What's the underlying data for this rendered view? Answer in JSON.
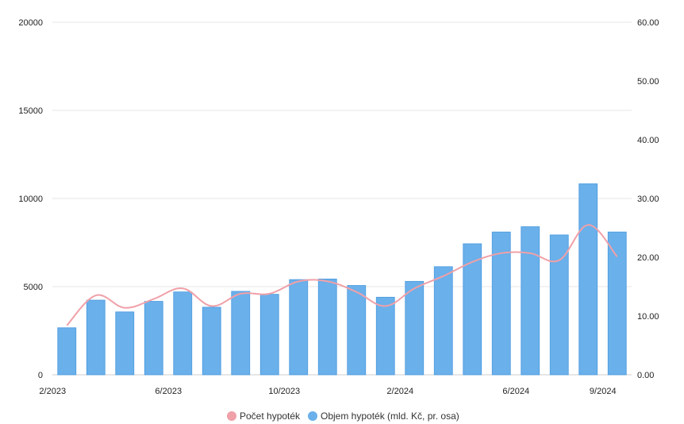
{
  "chart_data": {
    "type": "bar",
    "categories": [
      "2/2023",
      "3/2023",
      "4/2023",
      "5/2023",
      "6/2023",
      "7/2023",
      "8/2023",
      "9/2023",
      "10/2023",
      "11/2023",
      "12/2023",
      "1/2024",
      "2/2024",
      "3/2024",
      "4/2024",
      "5/2024",
      "6/2024",
      "7/2024",
      "8/2024",
      "9/2024"
    ],
    "x_tick_labels": [
      "2/2023",
      "6/2023",
      "10/2023",
      "2/2024",
      "6/2024",
      "9/2024"
    ],
    "y_left": {
      "ylim": [
        0,
        20000
      ],
      "ticks": [
        0,
        5000,
        10000,
        15000,
        20000
      ]
    },
    "y_right": {
      "ylim": [
        0,
        60
      ],
      "ticks": [
        "0.00",
        "10.00",
        "20.00",
        "30.00",
        "40.00",
        "50.00",
        "60.00"
      ]
    },
    "series": [
      {
        "name": "Objem hypoték (mld. Kč, pr. osa)",
        "type": "bar",
        "axis": "right",
        "color": "#6ab0ea",
        "values": [
          8.0,
          12.7,
          10.7,
          12.5,
          14.1,
          11.5,
          14.2,
          13.7,
          16.2,
          16.3,
          15.2,
          13.2,
          15.9,
          18.4,
          22.3,
          24.3,
          25.2,
          23.8,
          32.5,
          24.3
        ]
      },
      {
        "name": "Počet hypoték",
        "type": "line",
        "axis": "left",
        "color": "#f0a0a8",
        "values": [
          2800,
          4500,
          3800,
          4300,
          4900,
          3900,
          4600,
          4600,
          5300,
          5300,
          4700,
          3900,
          4900,
          5600,
          6400,
          6900,
          6900,
          6500,
          8500,
          6700
        ]
      }
    ],
    "grid": true,
    "legend_position": "bottom"
  }
}
